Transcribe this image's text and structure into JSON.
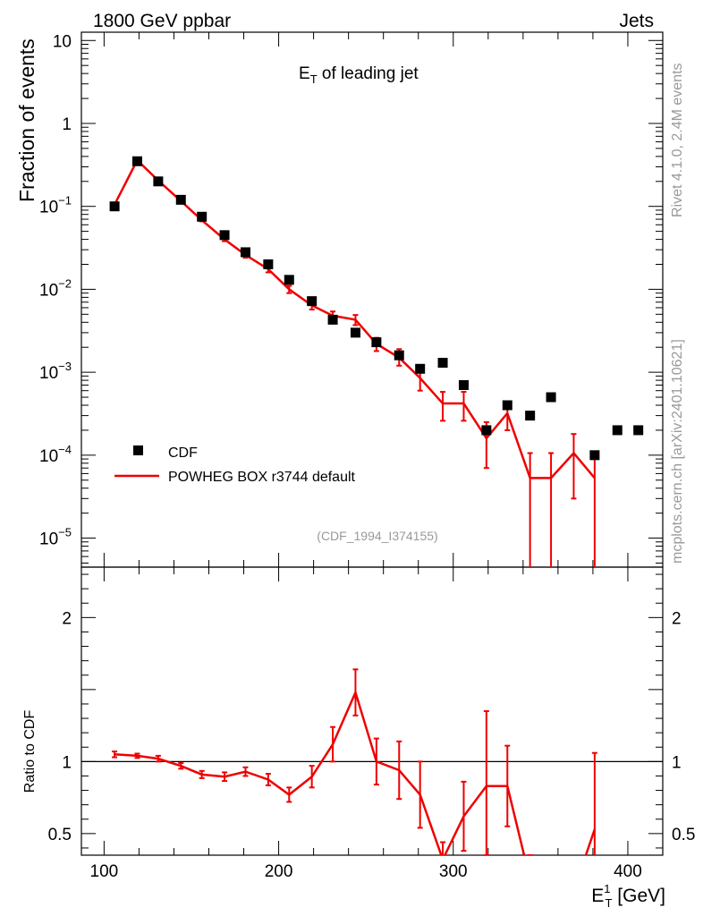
{
  "header": {
    "left": "1800 GeV ppbar",
    "right": "Jets"
  },
  "side_labels": {
    "rivet": "Rivet 4.1.0,  2.4M events",
    "mcplots": "mcplots.cern.ch [arXiv:2401.10621]"
  },
  "plot_title": {
    "main": "E",
    "sub": "T",
    "rest": " of leading jet"
  },
  "analysis_id": "(CDF_1994_I374155)",
  "colors": {
    "data": "#000000",
    "mc": "#ee0000",
    "frame": "#000000",
    "aux": "#999999"
  },
  "chart_data": {
    "type": "scatter",
    "xlabel": {
      "main": "E",
      "sup": "1",
      "sub": "T",
      "rest": " [GeV]"
    },
    "ylabel_top": "Fraction of events",
    "ylabel_bottom": "Ratio to CDF",
    "xlim": [
      87,
      420
    ],
    "ylim_top_log10": [
      -5.35,
      1.1
    ],
    "ylim_bottom": [
      0.35,
      2.35
    ],
    "x_ticks": [
      {
        "v": 100,
        "label": "100"
      },
      {
        "v": 200,
        "label": "200"
      },
      {
        "v": 300,
        "label": "300"
      },
      {
        "v": 400,
        "label": "400"
      }
    ],
    "y_ticks_top": [
      {
        "e": 1,
        "label": "10",
        "sup": ""
      },
      {
        "e": 0,
        "label": "1",
        "sup": ""
      },
      {
        "e": -1,
        "label": "10",
        "sup": "−1"
      },
      {
        "e": -2,
        "label": "10",
        "sup": "−2"
      },
      {
        "e": -3,
        "label": "10",
        "sup": "−3"
      },
      {
        "e": -4,
        "label": "10",
        "sup": "−4"
      },
      {
        "e": -5,
        "label": "10",
        "sup": "−5"
      }
    ],
    "y_ticks_bottom": [
      {
        "v": 0.5,
        "label": "0.5"
      },
      {
        "v": 1,
        "label": "1"
      },
      {
        "v": 2,
        "label": "2"
      }
    ],
    "legend": {
      "data_label": "CDF",
      "mc_label": "POWHEG BOX r3744 default"
    },
    "data_points": [
      {
        "x": 106,
        "y": 0.1
      },
      {
        "x": 119,
        "y": 0.35
      },
      {
        "x": 131,
        "y": 0.2
      },
      {
        "x": 144,
        "y": 0.12
      },
      {
        "x": 156,
        "y": 0.075
      },
      {
        "x": 169,
        "y": 0.045
      },
      {
        "x": 181,
        "y": 0.028
      },
      {
        "x": 194,
        "y": 0.02
      },
      {
        "x": 206,
        "y": 0.013
      },
      {
        "x": 219,
        "y": 0.0072
      },
      {
        "x": 231,
        "y": 0.0043
      },
      {
        "x": 244,
        "y": 0.003
      },
      {
        "x": 256,
        "y": 0.0023
      },
      {
        "x": 269,
        "y": 0.0016
      },
      {
        "x": 281,
        "y": 0.0011
      },
      {
        "x": 294,
        "y": 0.0013
      },
      {
        "x": 306,
        "y": 0.0007
      },
      {
        "x": 319,
        "y": 0.0002
      },
      {
        "x": 331,
        "y": 0.0004
      },
      {
        "x": 344,
        "y": 0.0003
      },
      {
        "x": 356,
        "y": 0.0005
      },
      {
        "x": 381,
        "y": 0.0001
      },
      {
        "x": 394,
        "y": 0.0002
      },
      {
        "x": 406,
        "y": 0.0002
      }
    ],
    "mc_bins": [
      {
        "x": 106,
        "y": 0.105,
        "lo": 0.102,
        "hi": 0.108
      },
      {
        "x": 119,
        "y": 0.36,
        "lo": 0.355,
        "hi": 0.365
      },
      {
        "x": 131,
        "y": 0.205,
        "lo": 0.201,
        "hi": 0.209
      },
      {
        "x": 144,
        "y": 0.116,
        "lo": 0.113,
        "hi": 0.119
      },
      {
        "x": 156,
        "y": 0.068,
        "lo": 0.066,
        "hi": 0.07
      },
      {
        "x": 169,
        "y": 0.04,
        "lo": 0.038,
        "hi": 0.042
      },
      {
        "x": 181,
        "y": 0.026,
        "lo": 0.024,
        "hi": 0.028
      },
      {
        "x": 194,
        "y": 0.0175,
        "lo": 0.016,
        "hi": 0.019
      },
      {
        "x": 206,
        "y": 0.01,
        "lo": 0.009,
        "hi": 0.011
      },
      {
        "x": 219,
        "y": 0.0064,
        "lo": 0.0057,
        "hi": 0.0071
      },
      {
        "x": 231,
        "y": 0.0048,
        "lo": 0.0042,
        "hi": 0.0054
      },
      {
        "x": 244,
        "y": 0.0043,
        "lo": 0.0037,
        "hi": 0.0049
      },
      {
        "x": 256,
        "y": 0.0022,
        "lo": 0.0018,
        "hi": 0.0026
      },
      {
        "x": 269,
        "y": 0.0015,
        "lo": 0.0012,
        "hi": 0.0019
      },
      {
        "x": 281,
        "y": 0.00085,
        "lo": 0.0006,
        "hi": 0.0011
      },
      {
        "x": 294,
        "y": 0.00042,
        "lo": 0.00026,
        "hi": 0.00058
      },
      {
        "x": 306,
        "y": 0.00042,
        "lo": 0.00026,
        "hi": 0.00058
      },
      {
        "x": 319,
        "y": 0.00016,
        "lo": 7e-05,
        "hi": 0.00025
      },
      {
        "x": 331,
        "y": 0.00032,
        "lo": 0.0002,
        "hi": 0.00044
      },
      {
        "x": 344,
        "y": 5.3e-05,
        "lo": 1e-06,
        "hi": 0.000106
      },
      {
        "x": 356,
        "y": 5.3e-05,
        "lo": 1e-06,
        "hi": 0.000106
      },
      {
        "x": 369,
        "y": 0.000106,
        "lo": 3e-05,
        "hi": 0.00018
      },
      {
        "x": 381,
        "y": 5.3e-05,
        "lo": 1e-06,
        "hi": 0.000106
      }
    ],
    "ratio": [
      {
        "x": 106,
        "y": 1.05,
        "lo": 1.03,
        "hi": 1.07
      },
      {
        "x": 119,
        "y": 1.04,
        "lo": 1.025,
        "hi": 1.055
      },
      {
        "x": 131,
        "y": 1.02,
        "lo": 1.0,
        "hi": 1.04
      },
      {
        "x": 144,
        "y": 0.97,
        "lo": 0.95,
        "hi": 0.99
      },
      {
        "x": 156,
        "y": 0.91,
        "lo": 0.885,
        "hi": 0.935
      },
      {
        "x": 169,
        "y": 0.895,
        "lo": 0.865,
        "hi": 0.925
      },
      {
        "x": 181,
        "y": 0.93,
        "lo": 0.9,
        "hi": 0.96
      },
      {
        "x": 194,
        "y": 0.875,
        "lo": 0.835,
        "hi": 0.915
      },
      {
        "x": 206,
        "y": 0.77,
        "lo": 0.72,
        "hi": 0.82
      },
      {
        "x": 219,
        "y": 0.895,
        "lo": 0.82,
        "hi": 0.97
      },
      {
        "x": 231,
        "y": 1.12,
        "lo": 1.0,
        "hi": 1.24
      },
      {
        "x": 244,
        "y": 1.48,
        "lo": 1.32,
        "hi": 1.64
      },
      {
        "x": 256,
        "y": 1.0,
        "lo": 0.84,
        "hi": 1.16
      },
      {
        "x": 269,
        "y": 0.94,
        "lo": 0.74,
        "hi": 1.14
      },
      {
        "x": 281,
        "y": 0.77,
        "lo": 0.54,
        "hi": 1.0
      },
      {
        "x": 294,
        "y": 0.32,
        "lo": 0.2,
        "hi": 0.44
      },
      {
        "x": 306,
        "y": 0.62,
        "lo": 0.38,
        "hi": 0.86
      },
      {
        "x": 319,
        "y": 0.83,
        "lo": 0.35,
        "hi": 1.35
      },
      {
        "x": 331,
        "y": 0.83,
        "lo": 0.55,
        "hi": 1.11
      },
      {
        "x": 344,
        "y": 0.18,
        "lo": 0.0,
        "hi": 0.35
      },
      {
        "x": 356,
        "y": 0.1,
        "lo": 0.0,
        "hi": 0.2
      },
      {
        "x": 369,
        "y": 0.1,
        "lo": 0.0,
        "hi": 0.2
      },
      {
        "x": 381,
        "y": 0.53,
        "lo": 0.0,
        "hi": 1.06
      }
    ]
  }
}
